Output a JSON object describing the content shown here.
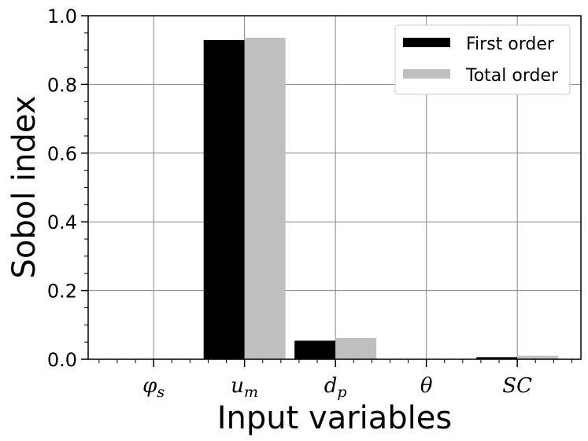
{
  "chart_data": {
    "type": "bar",
    "categories": [
      "φs",
      "um",
      "dp",
      "θ",
      "SC"
    ],
    "category_labels": [
      {
        "main": "φ",
        "sub": "s"
      },
      {
        "main": "u",
        "sub": "m"
      },
      {
        "main": "d",
        "sub": "p"
      },
      {
        "main": "θ",
        "sub": ""
      },
      {
        "main": "SC",
        "sub": ""
      }
    ],
    "series": [
      {
        "name": "First order",
        "values": [
          0.0,
          0.929,
          0.054,
          0.0,
          0.006
        ],
        "color": "#000000"
      },
      {
        "name": "Total order",
        "values": [
          0.002,
          0.936,
          0.062,
          0.0,
          0.01
        ],
        "color": "#bfbfbf"
      }
    ],
    "xlabel": "Input variables",
    "ylabel": "Sobol index",
    "ylim": [
      0,
      1.0
    ],
    "yticks": [
      "0.0",
      "0.2",
      "0.4",
      "0.6",
      "0.8",
      "1.0"
    ],
    "grid": true,
    "legend_position": "top-right"
  }
}
